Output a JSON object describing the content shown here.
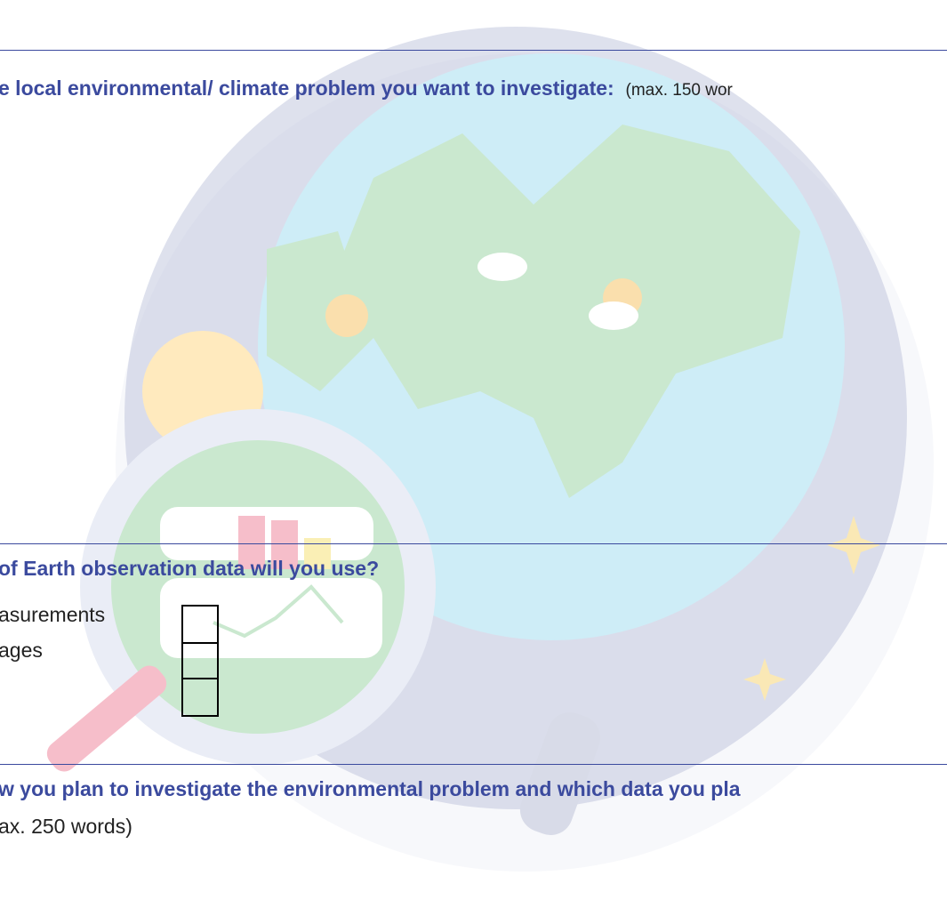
{
  "section1": {
    "heading": "e local environmental/ climate  problem you want to investigate:",
    "note": "(max. 150 wor"
  },
  "section2": {
    "heading": "of Earth observation data will you use?",
    "options": [
      "asurements",
      "ages"
    ]
  },
  "section3": {
    "heading": "w you plan to investigate the environmental  problem and which data you pla",
    "note": "ax. 250 words)"
  }
}
